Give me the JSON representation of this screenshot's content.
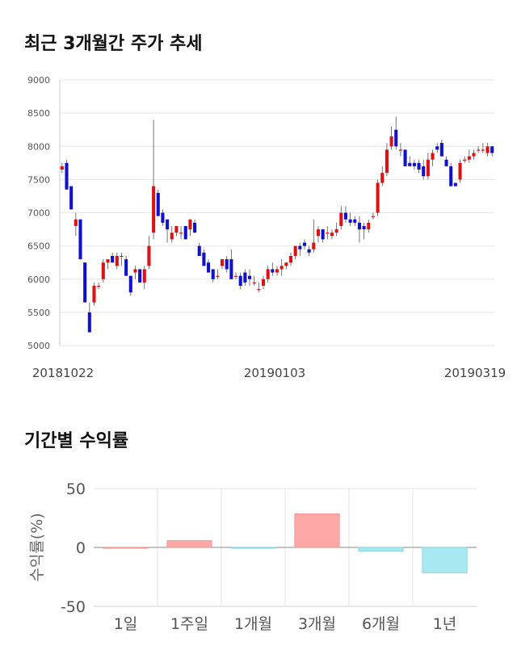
{
  "section1": {
    "title": "최근 3개월간 주가 추세"
  },
  "section2": {
    "title": "기간별 수익률"
  },
  "chart_data": [
    {
      "type": "candlestick",
      "title": "최근 3개월간 주가 추세",
      "ylim": [
        5000,
        9000
      ],
      "y_ticks": [
        9000,
        8500,
        8000,
        7500,
        7000,
        6500,
        6000,
        5500,
        5000
      ],
      "x_tick_labels": [
        "20181022",
        "20190103",
        "20190319"
      ],
      "colors": {
        "up": "#dd1111",
        "down": "#1111cc",
        "wick": "#555555"
      },
      "candles": [
        [
          7650,
          7750,
          7600,
          7700
        ],
        [
          7750,
          7800,
          7350,
          7350
        ],
        [
          7400,
          7400,
          7050,
          7050
        ],
        [
          6800,
          7000,
          6650,
          6900
        ],
        [
          6900,
          6900,
          6300,
          6300
        ],
        [
          6250,
          6250,
          5650,
          5650
        ],
        [
          5500,
          5650,
          5200,
          5200
        ],
        [
          5650,
          5950,
          5600,
          5900
        ],
        [
          5900,
          5950,
          5850,
          5900
        ],
        [
          6000,
          6300,
          5950,
          6250
        ],
        [
          6250,
          6300,
          6150,
          6300
        ],
        [
          6350,
          6400,
          6250,
          6250
        ],
        [
          6200,
          6400,
          6150,
          6350
        ],
        [
          6350,
          6400,
          6200,
          6350
        ],
        [
          6300,
          6350,
          6050,
          6050
        ],
        [
          6050,
          6050,
          5750,
          5800
        ],
        [
          6100,
          6200,
          6000,
          6150
        ],
        [
          6150,
          6150,
          5950,
          5950
        ],
        [
          5950,
          6200,
          5850,
          6150
        ],
        [
          6200,
          6650,
          6150,
          6500
        ],
        [
          6700,
          8400,
          6600,
          7400
        ],
        [
          7300,
          7350,
          6950,
          6950
        ],
        [
          7000,
          7050,
          6800,
          6850
        ],
        [
          6900,
          6900,
          6550,
          6750
        ],
        [
          6600,
          6800,
          6550,
          6700
        ],
        [
          6700,
          6800,
          6650,
          6800
        ],
        [
          6700,
          6800,
          6600,
          6700
        ],
        [
          6800,
          6800,
          6600,
          6600
        ],
        [
          6750,
          6900,
          6650,
          6900
        ],
        [
          6850,
          6900,
          6700,
          6700
        ],
        [
          6500,
          6550,
          6350,
          6350
        ],
        [
          6400,
          6450,
          6200,
          6200
        ],
        [
          6250,
          6300,
          6100,
          6100
        ],
        [
          6150,
          6150,
          5950,
          6000
        ],
        [
          6050,
          6150,
          6000,
          6050
        ],
        [
          6200,
          6300,
          6150,
          6300
        ],
        [
          6300,
          6350,
          6100,
          6150
        ],
        [
          6300,
          6450,
          6000,
          6000
        ],
        [
          6050,
          6100,
          6000,
          6050
        ],
        [
          6050,
          6100,
          5850,
          5900
        ],
        [
          6100,
          6150,
          5900,
          5950
        ],
        [
          6050,
          6150,
          5900,
          6000
        ],
        [
          5950,
          6050,
          5900,
          5950
        ],
        [
          5850,
          5950,
          5800,
          5850
        ],
        [
          5900,
          6050,
          5850,
          6000
        ],
        [
          6000,
          6200,
          5950,
          6150
        ],
        [
          6150,
          6250,
          6050,
          6100
        ],
        [
          6100,
          6200,
          6050,
          6150
        ],
        [
          6150,
          6300,
          6050,
          6200
        ],
        [
          6200,
          6250,
          6150,
          6250
        ],
        [
          6250,
          6400,
          6200,
          6350
        ],
        [
          6350,
          6500,
          6300,
          6500
        ],
        [
          6500,
          6550,
          6350,
          6450
        ],
        [
          6550,
          6600,
          6450,
          6500
        ],
        [
          6450,
          6500,
          6350,
          6400
        ],
        [
          6450,
          6900,
          6400,
          6550
        ],
        [
          6650,
          6800,
          6550,
          6750
        ],
        [
          6750,
          6750,
          6550,
          6600
        ],
        [
          6700,
          6800,
          6600,
          6700
        ],
        [
          6650,
          6750,
          6600,
          6700
        ],
        [
          6700,
          6850,
          6650,
          6750
        ],
        [
          6800,
          7100,
          6750,
          7000
        ],
        [
          7000,
          7100,
          6850,
          6900
        ],
        [
          6900,
          7000,
          6800,
          6850
        ],
        [
          6900,
          6950,
          6800,
          6850
        ],
        [
          6850,
          6950,
          6550,
          6750
        ],
        [
          6800,
          6850,
          6600,
          6750
        ],
        [
          6750,
          6900,
          6700,
          6850
        ],
        [
          6950,
          7000,
          6900,
          6950
        ],
        [
          7000,
          7500,
          6950,
          7450
        ],
        [
          7450,
          7700,
          7400,
          7600
        ],
        [
          7600,
          8050,
          7550,
          7950
        ],
        [
          8000,
          8300,
          7950,
          8150
        ],
        [
          8250,
          8450,
          7950,
          8000
        ],
        [
          7950,
          8050,
          7850,
          7950
        ],
        [
          7950,
          7950,
          7700,
          7700
        ],
        [
          7750,
          7850,
          7700,
          7700
        ],
        [
          7750,
          7800,
          7650,
          7700
        ],
        [
          7750,
          7800,
          7600,
          7650
        ],
        [
          7700,
          7800,
          7500,
          7550
        ],
        [
          7550,
          7900,
          7500,
          7800
        ],
        [
          7800,
          7950,
          7700,
          7900
        ],
        [
          8000,
          8050,
          7900,
          7950
        ],
        [
          8050,
          8100,
          7850,
          7850
        ],
        [
          7800,
          7850,
          7700,
          7700
        ],
        [
          7700,
          7750,
          7400,
          7400
        ],
        [
          7450,
          7450,
          7400,
          7400
        ],
        [
          7500,
          7800,
          7450,
          7750
        ],
        [
          7800,
          7850,
          7750,
          7800
        ],
        [
          7800,
          7950,
          7750,
          7850
        ],
        [
          7850,
          7950,
          7800,
          7900
        ],
        [
          7950,
          8000,
          7900,
          7950
        ],
        [
          7950,
          8050,
          7900,
          7950
        ],
        [
          7900,
          8050,
          7850,
          8000
        ],
        [
          8000,
          8000,
          7850,
          7900
        ]
      ]
    },
    {
      "type": "bar",
      "title": "기간별 수익률",
      "ylabel": "수익률(%)",
      "ylim": [
        -50,
        50
      ],
      "y_ticks": [
        50,
        0,
        -50
      ],
      "categories": [
        "1일",
        "1주일",
        "1개월",
        "3개월",
        "6개월",
        "1년"
      ],
      "values": [
        0,
        5.8,
        -0.7,
        28.5,
        -3.2,
        -21.5
      ],
      "colors": {
        "positive": "#ffa8a8",
        "negative": "#a8e8f0"
      }
    }
  ]
}
